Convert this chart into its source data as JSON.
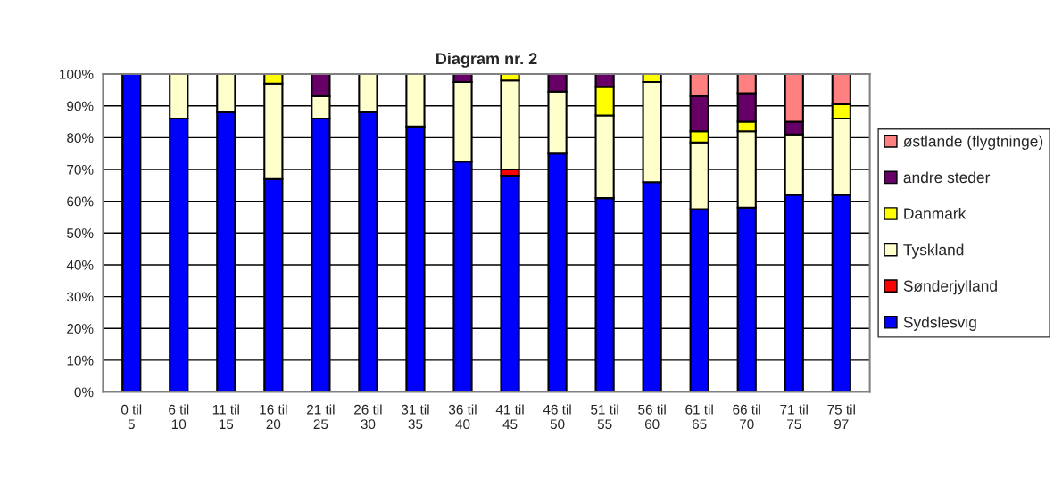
{
  "chart_data": {
    "type": "bar",
    "title": "Diagram nr. 2",
    "stacked": true,
    "grid": "y",
    "legend": "right",
    "categories": [
      "0 til 5",
      "6 til 10",
      "11 til 15",
      "16 til 20",
      "21 til 25",
      "26 til 30",
      "31 til 35",
      "36 til 40",
      "41 til 45",
      "46 til 50",
      "51 til 55",
      "56 til 60",
      "61 til 65",
      "66 til 70",
      "71 til 75",
      "75 til 97"
    ],
    "series": [
      {
        "name": "Sydslesvig",
        "color": "#0000ff",
        "values": [
          100,
          86,
          88,
          67,
          86,
          88,
          83.5,
          72.5,
          68,
          75,
          61,
          66,
          57.5,
          58,
          62,
          62
        ]
      },
      {
        "name": "Sønderjylland",
        "color": "#ff0000",
        "values": [
          null,
          null,
          null,
          null,
          null,
          null,
          null,
          null,
          2,
          null,
          null,
          null,
          null,
          null,
          null,
          null
        ]
      },
      {
        "name": "Tyskland",
        "color": "#ffffcc",
        "values": [
          null,
          14,
          12,
          30,
          7,
          12,
          16.5,
          25,
          28,
          19.5,
          26,
          31.5,
          21,
          24,
          19,
          24
        ]
      },
      {
        "name": "Danmark",
        "color": "#ffff00",
        "values": [
          null,
          null,
          null,
          3,
          null,
          null,
          null,
          null,
          2,
          null,
          9,
          2.5,
          3.5,
          3,
          null,
          4.5
        ]
      },
      {
        "name": "andre steder",
        "color": "#660066",
        "values": [
          null,
          null,
          null,
          null,
          7,
          null,
          null,
          2.5,
          null,
          5.5,
          4,
          null,
          11,
          9,
          4,
          null
        ]
      },
      {
        "name": "østlande (flygtninge)",
        "color": "#ff8080",
        "values": [
          null,
          null,
          null,
          null,
          null,
          null,
          null,
          null,
          null,
          null,
          null,
          null,
          7,
          6,
          15,
          9.5
        ]
      }
    ],
    "ylim": [
      0,
      100
    ],
    "yticks": [
      {
        "value": 0,
        "label": "0%"
      },
      {
        "value": 10,
        "label": "10%"
      },
      {
        "value": 20,
        "label": "20%"
      },
      {
        "value": 30,
        "label": "30%"
      },
      {
        "value": 40,
        "label": "40%"
      },
      {
        "value": 50,
        "label": "50%"
      },
      {
        "value": 60,
        "label": "60%"
      },
      {
        "value": 70,
        "label": "70%"
      },
      {
        "value": 80,
        "label": "80%"
      },
      {
        "value": 90,
        "label": "90%"
      },
      {
        "value": 100,
        "label": "100%"
      }
    ]
  }
}
